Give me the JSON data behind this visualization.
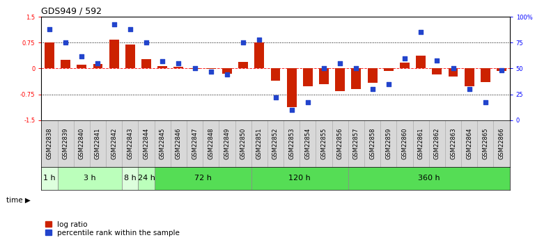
{
  "title": "GDS949 / 592",
  "samples": [
    "GSM22838",
    "GSM22839",
    "GSM22840",
    "GSM22841",
    "GSM22842",
    "GSM22843",
    "GSM22844",
    "GSM22845",
    "GSM22846",
    "GSM22847",
    "GSM22848",
    "GSM22849",
    "GSM22850",
    "GSM22851",
    "GSM22852",
    "GSM22853",
    "GSM22854",
    "GSM22855",
    "GSM22856",
    "GSM22857",
    "GSM22858",
    "GSM22859",
    "GSM22860",
    "GSM22861",
    "GSM22862",
    "GSM22863",
    "GSM22864",
    "GSM22865",
    "GSM22866"
  ],
  "log_ratio": [
    0.75,
    0.26,
    0.1,
    0.12,
    0.83,
    0.7,
    0.28,
    0.07,
    0.04,
    -0.01,
    -0.02,
    -0.16,
    0.18,
    0.76,
    -0.35,
    -1.12,
    -0.52,
    -0.46,
    -0.65,
    -0.6,
    -0.42,
    -0.08,
    0.17,
    0.37,
    -0.18,
    -0.23,
    -0.52,
    -0.4,
    -0.07
  ],
  "percentile_rank": [
    88,
    75,
    62,
    55,
    93,
    88,
    75,
    57,
    55,
    50,
    47,
    44,
    75,
    78,
    22,
    10,
    17,
    50,
    55,
    50,
    30,
    35,
    60,
    85,
    58,
    50,
    30,
    17,
    48
  ],
  "time_groups": [
    {
      "label": "1 h",
      "start": 0,
      "end": 1,
      "color": "#ddffdd"
    },
    {
      "label": "3 h",
      "start": 1,
      "end": 5,
      "color": "#bbffbb"
    },
    {
      "label": "8 h",
      "start": 5,
      "end": 6,
      "color": "#ddffdd"
    },
    {
      "label": "24 h",
      "start": 6,
      "end": 7,
      "color": "#bbffbb"
    },
    {
      "label": "72 h",
      "start": 7,
      "end": 13,
      "color": "#55dd55"
    },
    {
      "label": "120 h",
      "start": 13,
      "end": 19,
      "color": "#55dd55"
    },
    {
      "label": "360 h",
      "start": 19,
      "end": 29,
      "color": "#55dd55"
    }
  ],
  "bar_color": "#cc2200",
  "dot_color": "#2244cc",
  "ylim_left": [
    -1.5,
    1.5
  ],
  "ylim_right": [
    0,
    100
  ],
  "yticks_left": [
    -1.5,
    -0.75,
    0.0,
    0.75,
    1.5
  ],
  "ytick_labels_left": [
    "-1.5",
    "-0.75",
    "0",
    "0.75",
    "1.5"
  ],
  "yticks_right": [
    0,
    25,
    50,
    75,
    100
  ],
  "ytick_labels_right": [
    "0",
    "25",
    "50",
    "75",
    "100%"
  ],
  "hlines": [
    0.75,
    -0.75
  ],
  "zero_line": 0.0,
  "title_fontsize": 9,
  "tick_fontsize": 6,
  "legend_fontsize": 7.5,
  "group_label_fontsize": 8,
  "sample_fontsize": 6,
  "time_label": "time"
}
